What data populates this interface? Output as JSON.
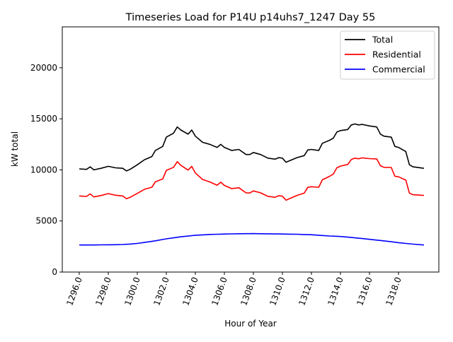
{
  "chart_data": {
    "type": "line",
    "title": "Timeseries Load for P14U p14uhs7_1247  Day 55",
    "xlabel": "Hour of Year",
    "ylabel": "kW total",
    "xlim": [
      1294.83,
      1320.78
    ],
    "ylim": [
      0,
      24000
    ],
    "xticks": [
      1296,
      1298,
      1300,
      1302,
      1304,
      1306,
      1308,
      1310,
      1312,
      1314,
      1316,
      1318
    ],
    "xtick_labels": [
      "1296.0",
      "1298.0",
      "1300.0",
      "1302.0",
      "1304.0",
      "1306.0",
      "1308.0",
      "1310.0",
      "1312.0",
      "1314.0",
      "1316.0",
      "1318.0"
    ],
    "yticks": [
      0,
      5000,
      10000,
      15000,
      20000
    ],
    "ytick_labels": [
      "0",
      "5000",
      "10000",
      "15000",
      "20000"
    ],
    "grid": false,
    "legend_position": "top-right",
    "x": [
      1296,
      1296.5,
      1296.75,
      1297,
      1297.5,
      1298,
      1298.5,
      1299,
      1299.25,
      1299.5,
      1300,
      1300.5,
      1301,
      1301.25,
      1301.75,
      1302,
      1302.5,
      1302.75,
      1303,
      1303.5,
      1303.75,
      1304,
      1304.5,
      1305,
      1305.5,
      1305.75,
      1306,
      1306.5,
      1307,
      1307.5,
      1307.75,
      1308,
      1308.5,
      1309,
      1309.5,
      1309.75,
      1310,
      1310.25,
      1310.5,
      1311,
      1311.5,
      1311.75,
      1312,
      1312.5,
      1312.75,
      1313.25,
      1313.5,
      1313.75,
      1314,
      1314.5,
      1314.75,
      1315,
      1315.25,
      1315.5,
      1316,
      1316.5,
      1316.75,
      1317,
      1317.5,
      1317.75,
      1318,
      1318.5,
      1318.75,
      1319,
      1319.75
    ],
    "series": [
      {
        "name": "Total",
        "color": "#000000",
        "values": [
          10100,
          10050,
          10300,
          10000,
          10150,
          10350,
          10200,
          10150,
          9900,
          10050,
          10500,
          11000,
          11300,
          11900,
          12300,
          13200,
          13600,
          14200,
          13900,
          13500,
          13900,
          13300,
          12700,
          12500,
          12200,
          12500,
          12200,
          11900,
          12000,
          11500,
          11500,
          11700,
          11500,
          11150,
          11050,
          11200,
          11150,
          10750,
          10900,
          11200,
          11400,
          11950,
          12000,
          11900,
          12600,
          12900,
          13100,
          13700,
          13850,
          13950,
          14400,
          14500,
          14400,
          14450,
          14300,
          14200,
          13500,
          13300,
          13200,
          12300,
          12200,
          11800,
          10500,
          10300,
          10150
        ]
      },
      {
        "name": "Residential",
        "color": "#ff0000",
        "values": [
          7450,
          7400,
          7650,
          7350,
          7490,
          7680,
          7520,
          7450,
          7180,
          7310,
          7700,
          8100,
          8300,
          8840,
          9110,
          9950,
          10250,
          10800,
          10450,
          9980,
          10340,
          9700,
          9060,
          8820,
          8500,
          8790,
          8480,
          8165,
          8250,
          7745,
          7742,
          7940,
          7750,
          7410,
          7320,
          7475,
          7430,
          7035,
          7190,
          7500,
          7725,
          8290,
          8350,
          8300,
          9025,
          9370,
          9585,
          10200,
          10370,
          10535,
          11020,
          11150,
          11090,
          11175,
          11100,
          11075,
          10410,
          10250,
          10235,
          9380,
          9320,
          9000,
          7730,
          7570,
          7500
        ]
      },
      {
        "name": "Commercial",
        "color": "#0000ff",
        "values": [
          2650,
          2650,
          2650,
          2650,
          2660,
          2670,
          2680,
          2700,
          2720,
          2740,
          2800,
          2900,
          3000,
          3060,
          3190,
          3250,
          3350,
          3400,
          3450,
          3520,
          3560,
          3600,
          3640,
          3680,
          3700,
          3710,
          3720,
          3735,
          3750,
          3755,
          3758,
          3760,
          3750,
          3740,
          3730,
          3725,
          3720,
          3715,
          3710,
          3700,
          3675,
          3660,
          3650,
          3600,
          3575,
          3530,
          3515,
          3500,
          3480,
          3415,
          3380,
          3350,
          3310,
          3275,
          3200,
          3125,
          3090,
          3050,
          2965,
          2920,
          2880,
          2800,
          2770,
          2730,
          2650
        ]
      }
    ]
  }
}
